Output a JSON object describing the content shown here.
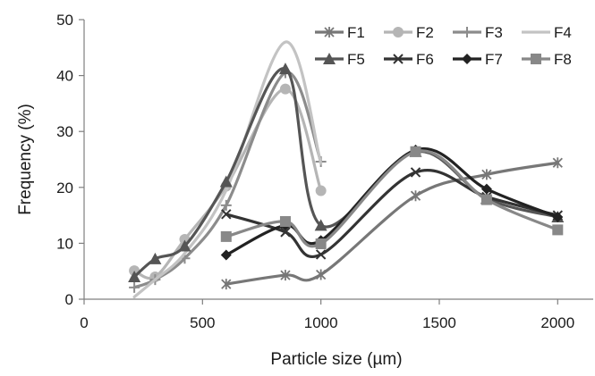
{
  "chart_data": {
    "type": "line",
    "title": "",
    "xlabel": "Particle size (µm)",
    "ylabel": "Frequency  (%)",
    "xlim": [
      0,
      2150
    ],
    "ylim": [
      0,
      50
    ],
    "xticks": [
      0,
      500,
      1000,
      1500,
      2000
    ],
    "yticks": [
      0,
      10,
      20,
      30,
      40,
      50
    ],
    "grid": false,
    "legend": "top-right",
    "smooth": true,
    "series": [
      {
        "name": "F1",
        "color": "#777777",
        "marker": "star",
        "x": [
          600,
          850,
          1000,
          1400,
          1700,
          2000
        ],
        "values": [
          2.7,
          4.3,
          4.4,
          18.5,
          22.3,
          24.4
        ]
      },
      {
        "name": "F2",
        "color": "#b5b5b5",
        "marker": "circle",
        "x": [
          212,
          300,
          425,
          600,
          850,
          1000
        ],
        "values": [
          5.1,
          4.0,
          10.7,
          20.2,
          37.6,
          19.4
        ]
      },
      {
        "name": "F3",
        "color": "#8c8c8c",
        "marker": "plus",
        "x": [
          212,
          300,
          425,
          600,
          850,
          1000
        ],
        "values": [
          2.1,
          3.5,
          7.3,
          16.8,
          40.5,
          24.6
        ]
      },
      {
        "name": "F4",
        "color": "#c3c3c3",
        "marker": "none",
        "x": [
          212,
          300,
          425,
          600,
          850,
          1000
        ],
        "values": [
          0.4,
          3.5,
          8.2,
          19.5,
          46.0,
          24.3
        ]
      },
      {
        "name": "F5",
        "color": "#555555",
        "marker": "triangle",
        "x": [
          212,
          300,
          425,
          600,
          850,
          1000,
          1400,
          1700,
          2000
        ],
        "values": [
          4.0,
          7.2,
          9.5,
          21.0,
          41.2,
          13.2,
          26.4,
          18.0,
          14.7
        ]
      },
      {
        "name": "F6",
        "color": "#333333",
        "marker": "x",
        "x": [
          600,
          850,
          1000,
          1400,
          1700,
          2000
        ],
        "values": [
          15.2,
          12.0,
          8.0,
          22.7,
          18.3,
          15.0
        ]
      },
      {
        "name": "F7",
        "color": "#222222",
        "marker": "diamond",
        "x": [
          600,
          850,
          1000,
          1400,
          1700,
          2000
        ],
        "values": [
          7.9,
          13.2,
          10.5,
          26.7,
          19.7,
          14.7
        ]
      },
      {
        "name": "F8",
        "color": "#888888",
        "marker": "square",
        "x": [
          600,
          850,
          1000,
          1400,
          1700,
          2000
        ],
        "values": [
          11.2,
          13.9,
          9.9,
          26.4,
          17.8,
          12.4
        ]
      }
    ]
  }
}
